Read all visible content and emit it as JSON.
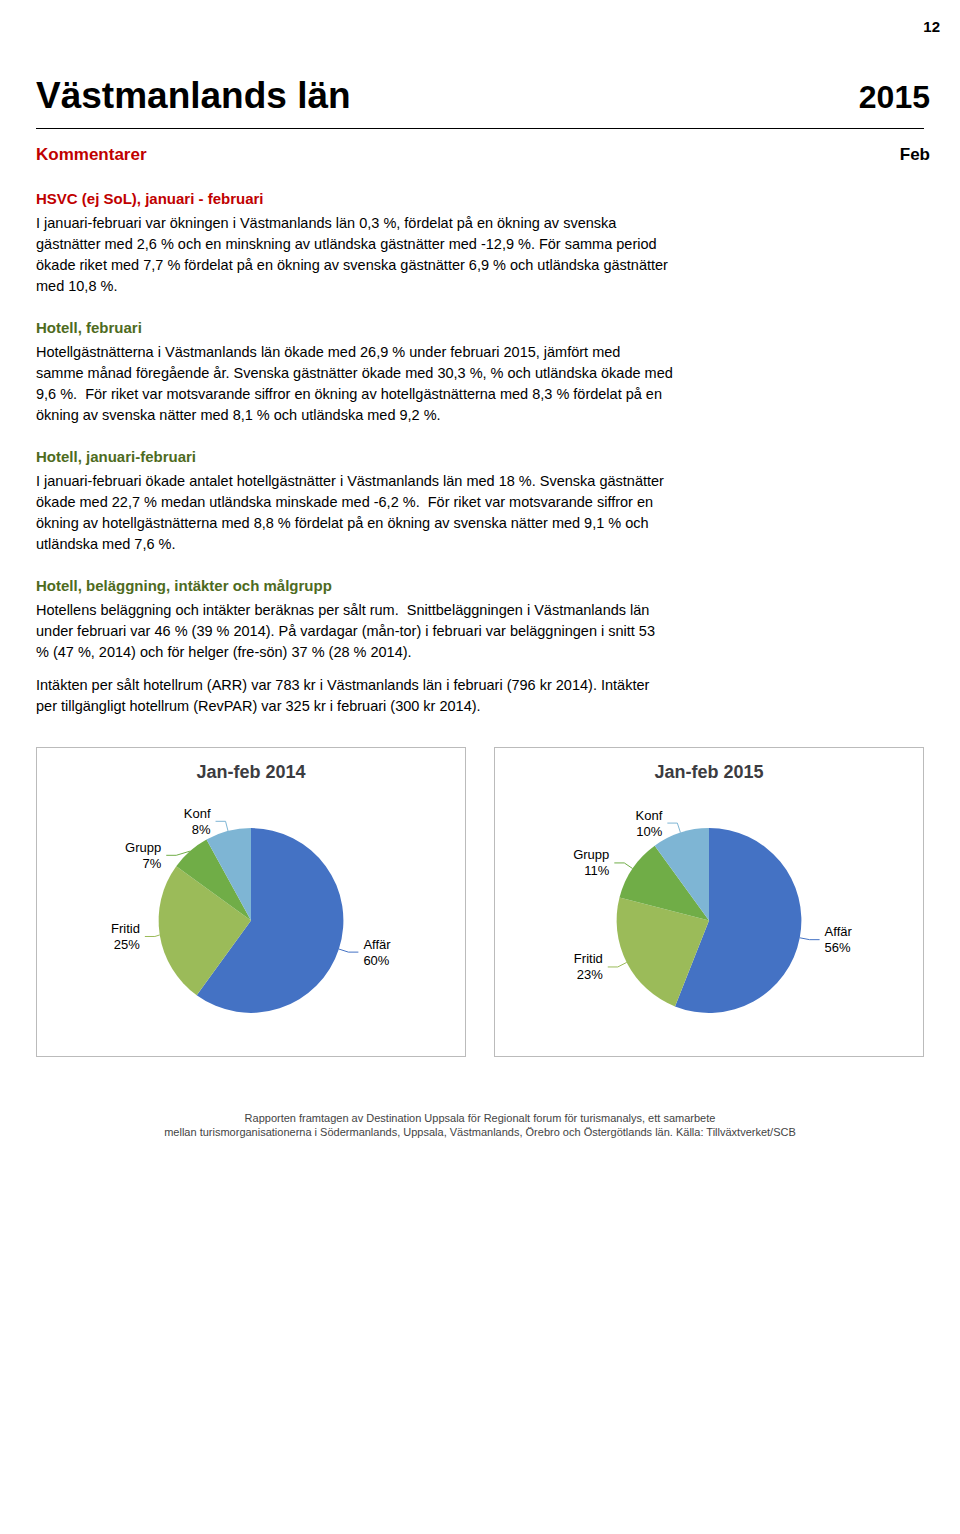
{
  "page_number": "12",
  "title": "Västmanlands län",
  "year": "2015",
  "section_label": "Kommentarer",
  "section_label_color": "#c00000",
  "section_right": "Feb",
  "paragraphs": [
    {
      "heading": "HSVC (ej SoL), januari - februari",
      "heading_color": "#c00000",
      "body": "I januari-februari var ökningen i Västmanlands län 0,3 %, fördelat på en ökning av svenska\ngästnätter med 2,6 % och en minskning av utländska gästnätter med -12,9 %. För samma period\nökade riket med 7,7 % fördelat på en ökning av svenska gästnätter 6,9 % och utländska gästnätter\nmed 10,8 %."
    },
    {
      "heading": "Hotell, februari",
      "heading_color": "#4e6b1e",
      "body": "Hotellgästnätterna i Västmanlands län ökade med 26,9 % under februari 2015, jämfört med\nsamme månad föregående år. Svenska gästnätter ökade med 30,3 %, % och utländska ökade med\n9,6 %.  För riket var motsvarande siffror en ökning av hotellgästnätterna med 8,3 % fördelat på en\nökning av svenska nätter med 8,1 % och utländska med 9,2 %."
    },
    {
      "heading": "Hotell, januari-februari",
      "heading_color": "#4e6b1e",
      "body": "I januari-februari ökade antalet hotellgästnätter i Västmanlands län med 18 %. Svenska gästnätter\nökade med 22,7 % medan utländska minskade med -6,2 %.  För riket var motsvarande siffror en\nökning av hotellgästnätterna med 8,8 % fördelat på en ökning av svenska nätter med 9,1 % och\nutländska med 7,6 %."
    },
    {
      "heading": "Hotell, beläggning, intäkter och målgrupp",
      "heading_color": "#4e6b1e",
      "body": "Hotellens beläggning och intäkter beräknas per sålt rum.  Snittbeläggningen i Västmanlands län\nunder februari var 46 % (39 % 2014). På vardagar (mån-tor) i februari var beläggningen i snitt 53\n% (47 %, 2014) och för helger (fre-sön) 37 % (28 % 2014).\n\nIntäkten per sålt hotellrum (ARR) var 783 kr i Västmanlands län i februari (796 kr 2014). Intäkter\nper tillgängligt hotellrum (RevPAR) var 325 kr i februari (300 kr 2014)."
    }
  ],
  "chart_data": [
    {
      "type": "pie",
      "title": "Jan-feb 2014",
      "categories": [
        "Affär",
        "Fritid",
        "Grupp",
        "Konf"
      ],
      "values": [
        60,
        25,
        7,
        8
      ],
      "value_labels": [
        "60%",
        "25%",
        "7%",
        "8%"
      ],
      "colors": [
        "#4472c4",
        "#9bbb59",
        "#70ad47",
        "#7eb5d4"
      ],
      "data_labels": true
    },
    {
      "type": "pie",
      "title": "Jan-feb 2015",
      "categories": [
        "Affär",
        "Fritid",
        "Grupp",
        "Konf"
      ],
      "values": [
        56,
        23,
        11,
        10
      ],
      "value_labels": [
        "56%",
        "23%",
        "11%",
        "10%"
      ],
      "colors": [
        "#4472c4",
        "#9bbb59",
        "#70ad47",
        "#7eb5d4"
      ],
      "data_labels": true
    }
  ],
  "footer": [
    "Rapporten framtagen av Destination Uppsala för Regionalt forum för turismanalys, ett samarbete",
    "mellan turismorganisationerna i Södermanlands, Uppsala, Västmanlands, Örebro och Östergötlands län. Källa: Tillväxtverket/SCB"
  ]
}
